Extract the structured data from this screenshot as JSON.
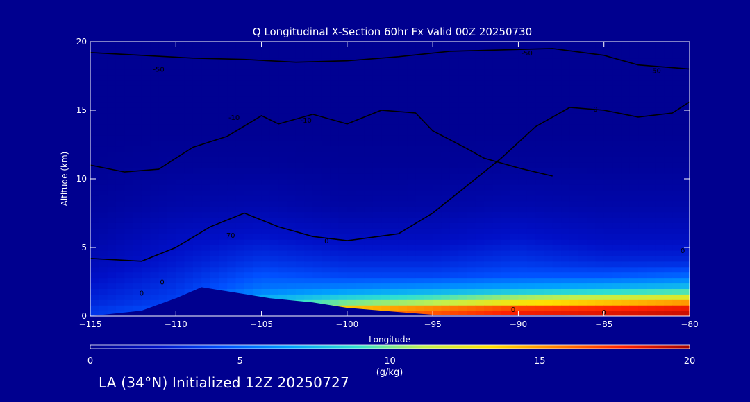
{
  "chart_data": {
    "type": "heatmap",
    "title": "Q Longitudinal X-Section 60hr  Fx Valid 00Z 20250730",
    "xlabel": "Longitude",
    "ylabel": "Altitude (km)",
    "xlim": [
      -115,
      -80
    ],
    "ylim": [
      0,
      20
    ],
    "xticks": [
      -115,
      -110,
      -105,
      -100,
      -95,
      -90,
      -85,
      -80
    ],
    "xtick_labels": [
      "−115",
      "−110",
      "−105",
      "−100",
      "−95",
      "−90",
      "−85",
      "−80"
    ],
    "yticks": [
      0,
      5,
      10,
      15,
      20
    ],
    "ytick_labels": [
      "0",
      "5",
      "10",
      "15",
      "20"
    ],
    "colorbar": {
      "label": "(g/kg)",
      "range": [
        0,
        20
      ],
      "ticks": [
        0,
        5,
        10,
        15,
        20
      ],
      "tick_labels": [
        "0",
        "5",
        "10",
        "15",
        "20"
      ],
      "colors": [
        "#00008f",
        "#0010c8",
        "#0050ff",
        "#00a0ff",
        "#30e0d0",
        "#c0f050",
        "#ffe000",
        "#ff8000",
        "#ff2000",
        "#a00000"
      ]
    },
    "terrain_km": [
      [
        -115,
        0
      ],
      [
        -112,
        0.4
      ],
      [
        -110,
        1.3
      ],
      [
        -108.5,
        2.1
      ],
      [
        -107.5,
        1.9
      ],
      [
        -106,
        1.6
      ],
      [
        -104.5,
        1.3
      ],
      [
        -102,
        1.0
      ],
      [
        -100,
        0.6
      ],
      [
        -97,
        0.3
      ],
      [
        -95,
        0.1
      ],
      [
        -80,
        0
      ]
    ],
    "moisture_q_gkg": [
      {
        "lon": -115,
        "q": [
          3.5,
          3.0,
          2.5,
          2.0,
          1.5,
          1.0,
          0.5,
          0.2,
          0.1
        ]
      },
      {
        "lon": -110,
        "q": [
          4.5,
          4.0,
          3.5,
          3.0,
          2.5,
          2.0,
          1.0,
          0.4,
          0.1
        ]
      },
      {
        "lon": -105,
        "q": [
          12.0,
          8.0,
          5.5,
          4.5,
          3.5,
          2.5,
          1.2,
          0.4,
          0.1
        ]
      },
      {
        "lon": -100,
        "q": [
          15.0,
          10.0,
          6.0,
          4.0,
          3.0,
          2.0,
          0.8,
          0.3,
          0.1
        ]
      },
      {
        "lon": -95,
        "q": [
          16.5,
          11.0,
          6.5,
          4.0,
          3.0,
          2.0,
          0.9,
          0.3,
          0.1
        ]
      },
      {
        "lon": -90,
        "q": [
          18.0,
          13.0,
          7.0,
          4.5,
          3.5,
          2.5,
          1.2,
          0.4,
          0.1
        ]
      },
      {
        "lon": -85,
        "q": [
          18.5,
          14.0,
          7.5,
          4.5,
          3.0,
          2.0,
          1.0,
          0.4,
          0.1
        ]
      },
      {
        "lon": -80,
        "q": [
          19.0,
          15.0,
          8.0,
          5.0,
          3.0,
          2.0,
          1.0,
          0.4,
          0.1
        ]
      }
    ],
    "moisture_levels_km": [
      0.5,
      1.0,
      2.0,
      3.0,
      4.0,
      5.5,
      8.0,
      11.0,
      14.0
    ],
    "temperature_contours_degC": [
      {
        "value": "0",
        "points": [
          [
            -115,
            4.2
          ],
          [
            -112,
            4.0
          ],
          [
            -110,
            5.0
          ],
          [
            -108,
            6.5
          ],
          [
            -106,
            7.5
          ],
          [
            -104,
            6.5
          ],
          [
            -102,
            5.8
          ],
          [
            -100,
            5.5
          ],
          [
            -97,
            6.0
          ],
          [
            -95,
            7.5
          ],
          [
            -93,
            9.5
          ],
          [
            -91,
            11.5
          ],
          [
            -89,
            13.8
          ],
          [
            -87,
            15.2
          ],
          [
            -85,
            15.0
          ],
          [
            -83,
            14.5
          ],
          [
            -81,
            14.8
          ],
          [
            -80,
            15.6
          ]
        ],
        "labels": [
          [
            -101.2,
            5.5
          ],
          [
            -85.5,
            15.1
          ]
        ]
      },
      {
        "value": "-10",
        "points": [
          [
            -115,
            11.0
          ],
          [
            -113,
            10.5
          ],
          [
            -111,
            10.7
          ],
          [
            -109,
            12.3
          ],
          [
            -107,
            13.1
          ],
          [
            -105,
            14.6
          ],
          [
            -104,
            14.0
          ],
          [
            -102,
            14.7
          ],
          [
            -100,
            14.0
          ],
          [
            -98,
            15.0
          ],
          [
            -96,
            14.8
          ],
          [
            -95,
            13.5
          ],
          [
            -93,
            12.2
          ],
          [
            -92,
            11.5
          ],
          [
            -90,
            10.8
          ],
          [
            -88,
            10.2
          ]
        ],
        "labels": [
          [
            -106.6,
            14.5
          ],
          [
            -102.4,
            14.3
          ]
        ]
      },
      {
        "value": "-50",
        "points": [
          [
            -115,
            19.2
          ],
          [
            -112,
            19.0
          ],
          [
            -109,
            18.8
          ],
          [
            -106,
            18.7
          ],
          [
            -103,
            18.5
          ],
          [
            -100,
            18.6
          ],
          [
            -97,
            18.9
          ],
          [
            -94,
            19.3
          ],
          [
            -91,
            19.4
          ],
          [
            -88,
            19.5
          ],
          [
            -85,
            19.0
          ],
          [
            -83,
            18.3
          ],
          [
            -80,
            18.0
          ]
        ],
        "labels": [
          [
            -111.0,
            18.0
          ],
          [
            -89.5,
            19.2
          ],
          [
            -82.0,
            17.9
          ]
        ]
      }
    ],
    "contour_label_70": {
      "value": "70",
      "lon": -106.8,
      "alt": 5.9
    },
    "contour_label_0_low": [
      {
        "value": "0",
        "lon": -110.8,
        "alt": 2.5
      },
      {
        "value": "0",
        "lon": -112.0,
        "alt": 1.7
      },
      {
        "value": "0",
        "lon": -90.3,
        "alt": 0.5
      },
      {
        "value": "0",
        "lon": -85.0,
        "alt": 0.3
      },
      {
        "value": "0",
        "lon": -80.4,
        "alt": 4.8
      }
    ],
    "annotation": "LA (34°N) Initialized 12Z 20250727"
  }
}
